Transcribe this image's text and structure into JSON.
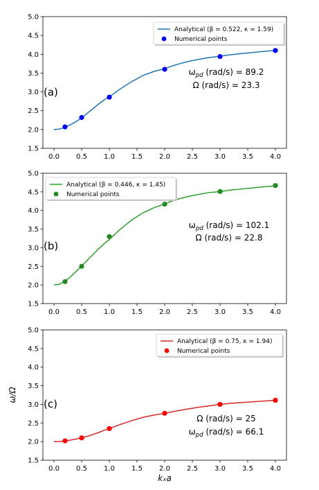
{
  "chart_data": [
    {
      "type": "line",
      "panel_label": "(a)",
      "color": "#1f77b4",
      "point_color": "#0000ff",
      "legend": {
        "placement": "top-right",
        "entries": [
          "Analytical (β = 0.522, κ = 1.59)",
          "Numerical points"
        ]
      },
      "annotations": [
        "ω_pd (rad/s) = 89.2",
        "Ω (rad/s) = 23.3"
      ],
      "xlim": [
        -0.2,
        4.2
      ],
      "ylim": [
        1.5,
        5.0
      ],
      "xticks": [
        "0.0",
        "0.5",
        "1.0",
        "1.5",
        "2.0",
        "2.5",
        "3.0",
        "3.5",
        "4.0"
      ],
      "yticks": [
        "1.5",
        "2.0",
        "2.5",
        "3.0",
        "3.5",
        "4.0",
        "4.5",
        "5.0"
      ],
      "xlabel": "",
      "ylabel": "",
      "series": [
        {
          "name": "Analytical (β = 0.522, κ = 1.59)",
          "kind": "line",
          "x": [
            0.0,
            0.1,
            0.2,
            0.3,
            0.4,
            0.5,
            0.6,
            0.7,
            0.8,
            0.9,
            1.0,
            1.2,
            1.4,
            1.6,
            1.8,
            2.0,
            2.2,
            2.4,
            2.6,
            2.8,
            3.0,
            3.2,
            3.4,
            3.6,
            3.8,
            4.0
          ],
          "y": [
            2.0,
            2.01,
            2.06,
            2.13,
            2.21,
            2.31,
            2.43,
            2.55,
            2.67,
            2.78,
            2.87,
            3.08,
            3.27,
            3.43,
            3.54,
            3.62,
            3.72,
            3.8,
            3.86,
            3.91,
            3.95,
            3.99,
            4.02,
            4.05,
            4.08,
            4.1
          ]
        },
        {
          "name": "Numerical points",
          "kind": "scatter",
          "x": [
            0.2,
            0.5,
            1.0,
            2.0,
            3.0,
            4.0
          ],
          "y": [
            2.07,
            2.32,
            2.86,
            3.6,
            3.94,
            4.1
          ]
        }
      ]
    },
    {
      "type": "line",
      "panel_label": "(b)",
      "color": "#2ca02c",
      "point_color": "#228b22",
      "legend": {
        "placement": "top-left",
        "entries": [
          "Analytical (β = 0.446, κ = 1.45)",
          "Numerical points"
        ]
      },
      "annotations": [
        "ω_pd (rad/s) = 102.1",
        "Ω (rad/s) = 22.8"
      ],
      "xlim": [
        -0.2,
        4.2
      ],
      "ylim": [
        1.5,
        5.0
      ],
      "xticks": [
        "0.0",
        "0.5",
        "1.0",
        "1.5",
        "2.0",
        "2.5",
        "3.0",
        "3.5",
        "4.0"
      ],
      "yticks": [
        "1.5",
        "2.0",
        "2.5",
        "3.0",
        "3.5",
        "4.0",
        "4.5",
        "5.0"
      ],
      "xlabel": "",
      "ylabel": "",
      "series": [
        {
          "name": "Analytical (β = 0.446, κ = 1.45)",
          "kind": "line",
          "x": [
            0.0,
            0.1,
            0.2,
            0.3,
            0.4,
            0.5,
            0.6,
            0.7,
            0.8,
            0.9,
            1.0,
            1.2,
            1.4,
            1.6,
            1.8,
            2.0,
            2.2,
            2.4,
            2.6,
            2.8,
            3.0,
            3.2,
            3.4,
            3.6,
            3.8,
            4.0
          ],
          "y": [
            2.0,
            2.02,
            2.1,
            2.22,
            2.36,
            2.51,
            2.66,
            2.81,
            2.96,
            3.1,
            3.22,
            3.5,
            3.74,
            3.93,
            4.07,
            4.18,
            4.29,
            4.37,
            4.43,
            4.48,
            4.51,
            4.55,
            4.58,
            4.61,
            4.64,
            4.66
          ]
        },
        {
          "name": "Numerical points",
          "kind": "scatter",
          "x": [
            0.2,
            0.5,
            1.0,
            2.0,
            3.0,
            4.0
          ],
          "y": [
            2.09,
            2.5,
            3.3,
            4.17,
            4.51,
            4.67
          ]
        }
      ]
    },
    {
      "type": "line",
      "panel_label": "(c)",
      "color": "#d62728",
      "point_color": "#ff0000",
      "legend": {
        "placement": "top-right",
        "entries": [
          "Analytical (β = 0.75, κ = 1.94)",
          "Numerical points"
        ]
      },
      "annotations": [
        "Ω (rad/s) = 25",
        "ω_pd (rad/s) = 66.1"
      ],
      "xlim": [
        -0.2,
        4.2
      ],
      "ylim": [
        1.5,
        5.0
      ],
      "xticks": [
        "0.0",
        "0.5",
        "1.0",
        "1.5",
        "2.0",
        "2.5",
        "3.0",
        "3.5",
        "4.0"
      ],
      "yticks": [
        "1.5",
        "2.0",
        "2.5",
        "3.0",
        "3.5",
        "4.0",
        "4.5",
        "5.0"
      ],
      "xlabel": "kₓa",
      "ylabel": "ω/Ω",
      "series": [
        {
          "name": "Analytical (β = 0.75, κ = 1.94)",
          "kind": "line",
          "x": [
            0.0,
            0.1,
            0.2,
            0.3,
            0.4,
            0.5,
            0.6,
            0.7,
            0.8,
            0.9,
            1.0,
            1.2,
            1.4,
            1.6,
            1.8,
            2.0,
            2.2,
            2.4,
            2.6,
            2.8,
            3.0,
            3.2,
            3.4,
            3.6,
            3.8,
            4.0
          ],
          "y": [
            2.0,
            2.0,
            2.02,
            2.04,
            2.07,
            2.1,
            2.14,
            2.19,
            2.24,
            2.3,
            2.35,
            2.46,
            2.56,
            2.65,
            2.71,
            2.76,
            2.82,
            2.87,
            2.92,
            2.96,
            3.0,
            3.03,
            3.05,
            3.07,
            3.09,
            3.11
          ]
        },
        {
          "name": "Numerical points",
          "kind": "scatter",
          "x": [
            0.2,
            0.5,
            1.0,
            2.0,
            3.0,
            4.0
          ],
          "y": [
            2.02,
            2.1,
            2.35,
            2.76,
            3.0,
            3.11
          ]
        }
      ]
    }
  ]
}
